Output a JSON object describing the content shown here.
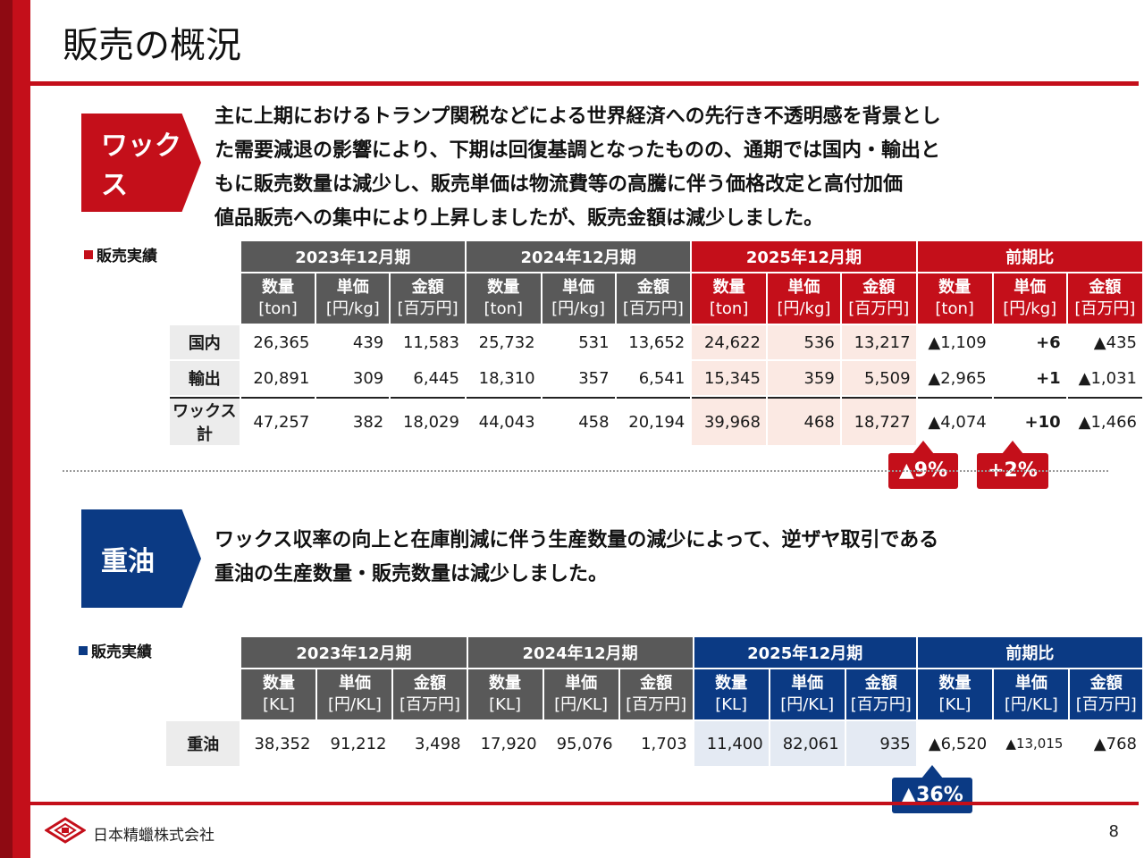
{
  "title": "販売の概況",
  "colors": {
    "red": "#c40f1a",
    "blue": "#0b3a84",
    "gray": "#595959"
  },
  "wax": {
    "badge": "ワックス",
    "lines": [
      "主に上期におけるトランプ関税などによる世界経済への先行き不透明感を背景とし",
      "た需要減退の影響により、下期は回復基調となったものの、通期では国内・輸出と",
      "もに販売数量は減少し、販売単価は物流費等の高騰に伴う価格改定と高付加価",
      "値品販売への集中により上昇しましたが、販売金額は減少しました。"
    ],
    "table_label": "販売実績",
    "periods": [
      "2023年12月期",
      "2024年12月期",
      "2025年12月期",
      "前期比"
    ],
    "cols": [
      {
        "name": "数量",
        "unit": "[ton]"
      },
      {
        "name": "単価",
        "unit": "[円/kg]"
      },
      {
        "name": "金額",
        "unit": "[百万円]"
      }
    ],
    "rows": [
      {
        "label": "国内",
        "v": [
          "26,365",
          "439",
          "11,583",
          "25,732",
          "531",
          "13,652",
          "24,622",
          "536",
          "13,217",
          "▲1,109",
          "+6",
          "▲435"
        ]
      },
      {
        "label": "輸出",
        "v": [
          "20,891",
          "309",
          "6,445",
          "18,310",
          "357",
          "6,541",
          "15,345",
          "359",
          "5,509",
          "▲2,965",
          "+1",
          "▲1,031"
        ]
      },
      {
        "label": "ワックス計",
        "v": [
          "47,257",
          "382",
          "18,029",
          "44,043",
          "458",
          "20,194",
          "39,968",
          "468",
          "18,727",
          "▲4,074",
          "+10",
          "▲1,466"
        ]
      }
    ],
    "callouts": [
      "▲9%",
      "+2%"
    ]
  },
  "oil": {
    "badge": "重油",
    "lines": [
      "ワックス収率の向上と在庫削減に伴う生産数量の減少によって、逆ザヤ取引である",
      "重油の生産数量・販売数量は減少しました。"
    ],
    "table_label": "販売実績",
    "periods": [
      "2023年12月期",
      "2024年12月期",
      "2025年12月期",
      "前期比"
    ],
    "cols": [
      {
        "name": "数量",
        "unit": "[KL]"
      },
      {
        "name": "単価",
        "unit": "[円/KL]"
      },
      {
        "name": "金額",
        "unit": "[百万円]"
      }
    ],
    "rows": [
      {
        "label": "重油",
        "v": [
          "38,352",
          "91,212",
          "3,498",
          "17,920",
          "95,076",
          "1,703",
          "11,400",
          "82,061",
          "935",
          "▲6,520",
          "▲13,015",
          "▲768"
        ]
      }
    ],
    "callouts": [
      "▲36%"
    ]
  },
  "footer": {
    "company": "日本精蠟株式会社",
    "page": "8"
  }
}
